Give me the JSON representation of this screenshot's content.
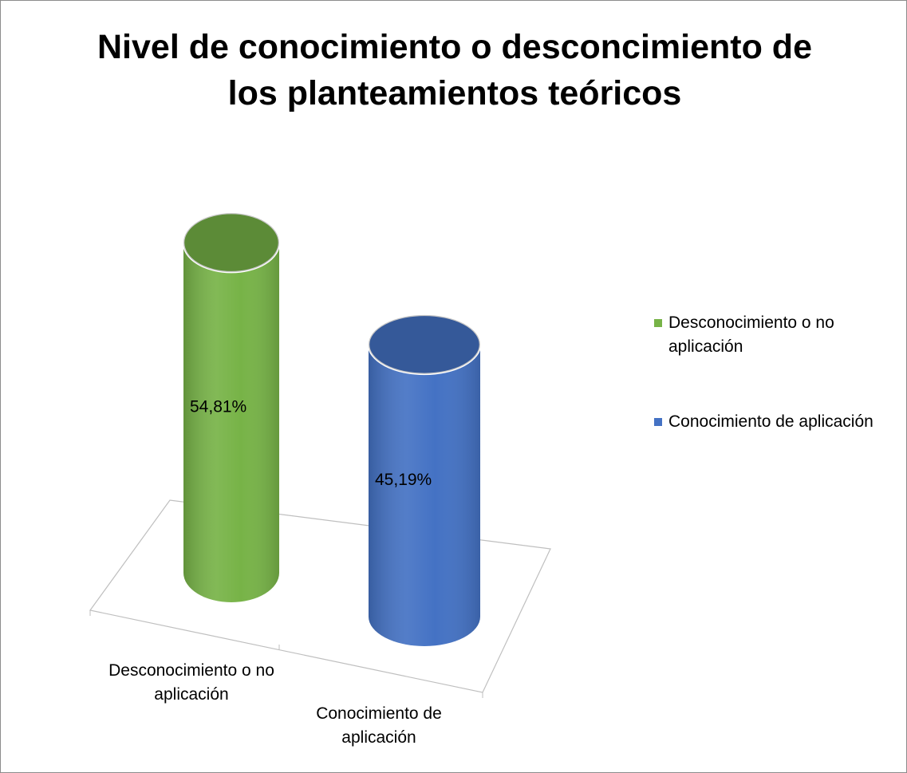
{
  "chart_data": {
    "type": "bar3d",
    "title": "Nivel de conocimiento  o desconcimiento de los planteamientos teóricos",
    "categories": [
      "Desconocimiento o no aplicación",
      "Conocimiento de aplicación"
    ],
    "values": [
      54.81,
      45.19
    ],
    "value_labels": [
      "54,81%",
      "45,19%"
    ],
    "colors": [
      "#77b347",
      "#4472c4"
    ],
    "legend": "right"
  }
}
